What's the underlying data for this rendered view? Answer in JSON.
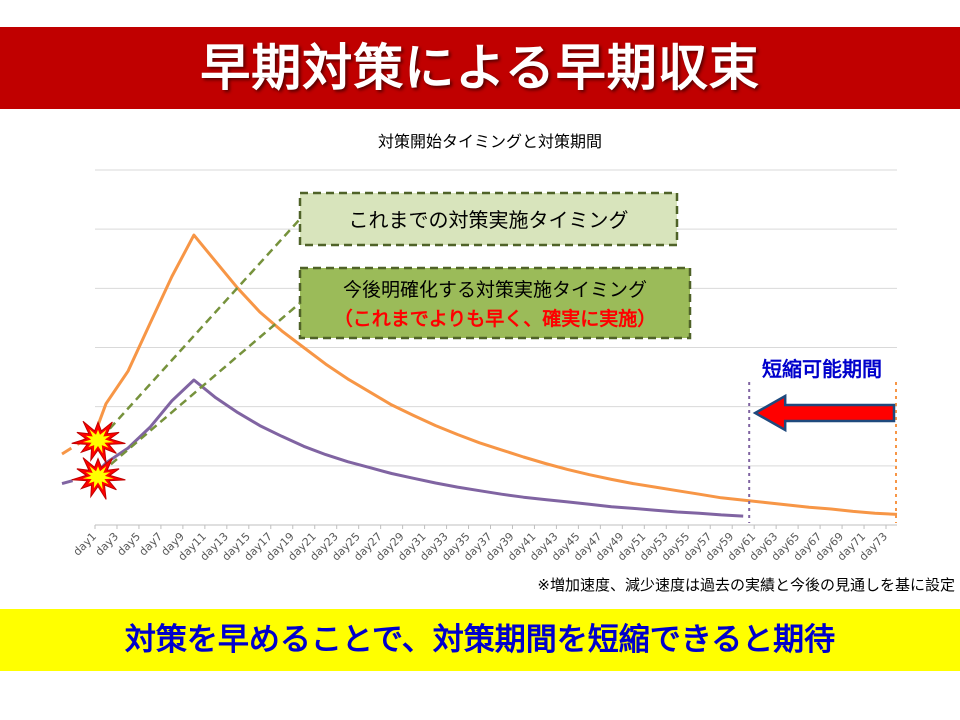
{
  "slide": {
    "title": "早期対策による早期収束",
    "footer": "対策を早めることで、対策期間を短縮できると期待"
  },
  "chart_data": {
    "type": "line",
    "title": "対策開始タイミングと対策期間",
    "categories": [
      "day1",
      "day3",
      "day5",
      "day7",
      "day9",
      "day11",
      "day13",
      "day15",
      "day17",
      "day19",
      "day21",
      "day23",
      "day25",
      "day27",
      "day29",
      "day31",
      "day33",
      "day35",
      "day37",
      "day39",
      "day41",
      "day43",
      "day45",
      "day47",
      "day49",
      "day51",
      "day53",
      "day55",
      "day57",
      "day59",
      "day61",
      "day63",
      "day65",
      "day67",
      "day69",
      "day71",
      "day73"
    ],
    "ylim": [
      0,
      6
    ],
    "grid": true,
    "series": [
      {
        "id": "previous",
        "color": "#f79646",
        "pre_x": [
          -2,
          1
        ],
        "pre_values": [
          1.2,
          1.55
        ],
        "x": [
          2,
          4,
          6,
          8,
          10,
          12,
          14,
          16,
          18,
          20,
          22,
          24,
          26,
          28,
          30,
          32,
          34,
          36,
          38,
          40,
          42,
          44,
          46,
          48,
          50,
          52,
          54,
          56,
          58,
          60,
          62,
          64,
          66,
          68,
          70,
          72,
          74
        ],
        "values": [
          2.05,
          2.6,
          3.4,
          4.2,
          4.9,
          4.45,
          4.0,
          3.6,
          3.28,
          3.0,
          2.72,
          2.47,
          2.25,
          2.03,
          1.85,
          1.68,
          1.53,
          1.39,
          1.27,
          1.15,
          1.04,
          0.94,
          0.85,
          0.77,
          0.7,
          0.64,
          0.58,
          0.52,
          0.46,
          0.42,
          0.38,
          0.34,
          0.3,
          0.27,
          0.23,
          0.2,
          0.18
        ]
      },
      {
        "id": "future",
        "color": "#8064a2",
        "pre_x": [
          -2,
          1
        ],
        "pre_values": [
          0.7,
          0.85
        ],
        "x": [
          2,
          4,
          6,
          8,
          10,
          12,
          14,
          16,
          18,
          20,
          22,
          24,
          26,
          28,
          30,
          32,
          34,
          36,
          38,
          40,
          42,
          44,
          46,
          48,
          50,
          52,
          54,
          56,
          58,
          60
        ],
        "values": [
          1.05,
          1.3,
          1.65,
          2.1,
          2.45,
          2.15,
          1.9,
          1.68,
          1.5,
          1.33,
          1.19,
          1.07,
          0.97,
          0.87,
          0.79,
          0.71,
          0.64,
          0.58,
          0.52,
          0.47,
          0.43,
          0.39,
          0.35,
          0.31,
          0.28,
          0.25,
          0.22,
          0.2,
          0.17,
          0.15
        ]
      }
    ],
    "callouts": {
      "prev_timing": "これまでの対策実施タイミング",
      "future_timing_line1": "今後明確化する対策実施タイミング",
      "future_timing_line2": "（これまでよりも早く、確実に実施）"
    },
    "shortening_label": "短縮可能期間",
    "footnote": "※増加速度、減少速度は過去の実績と今後の見通しを基に設定",
    "colors": {
      "callout_fill_1": "#d8e4bc",
      "callout_fill_2": "#9bbb59",
      "callout_border": "#4f6228",
      "arrow_fill": "#ff0000",
      "arrow_border": "#1f497d",
      "label_blue": "#0000cc",
      "label_red": "#ff0000"
    }
  }
}
